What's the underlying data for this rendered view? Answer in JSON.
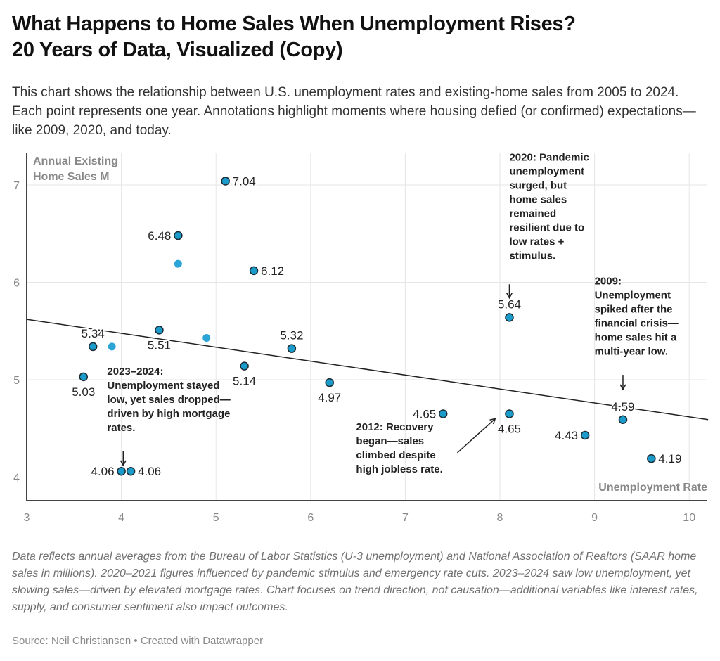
{
  "header": {
    "title_line1": "What Happens to Home Sales When Unemployment Rises?",
    "title_line2": "20 Years of Data, Visualized (Copy)",
    "subtitle": "This chart shows the relationship between U.S. unemployment rates and existing-home sales from 2005 to 2024. Each point represents one year. Annotations highlight moments where housing defied (or confirmed) expectations—like 2009, 2020, and today."
  },
  "colors": {
    "point_fill": "#1a9bc9",
    "point_stroke": "#1b2a33",
    "point_unlabeled": "#2aa5d6",
    "trend_line": "#222222",
    "gridline": "#e6e6e6",
    "axis_line": "#444444"
  },
  "chart_data": {
    "type": "scatter",
    "title": "What Happens to Home Sales When Unemployment Rises? 20 Years of Data, Visualized (Copy)",
    "xlabel": "Unemployment Rate",
    "ylabel_lines": [
      "Annual Existing",
      "Home Sales M"
    ],
    "xlim": [
      3,
      10.2
    ],
    "ylim": [
      3.75,
      7.2
    ],
    "xticks": [
      3,
      4,
      5,
      6,
      7,
      8,
      9,
      10
    ],
    "yticks": [
      4,
      5,
      6,
      7
    ],
    "grid": true,
    "points": [
      {
        "x": 5.1,
        "y": 7.04,
        "label": "7.04",
        "labeled": true,
        "pos": "right"
      },
      {
        "x": 4.6,
        "y": 6.48,
        "label": "6.48",
        "labeled": true,
        "pos": "left"
      },
      {
        "x": 4.6,
        "y": 6.19,
        "label": "",
        "labeled": false
      },
      {
        "x": 5.4,
        "y": 6.12,
        "label": "6.12",
        "labeled": true,
        "pos": "right"
      },
      {
        "x": 8.1,
        "y": 5.64,
        "label": "5.64",
        "labeled": true,
        "pos": "top"
      },
      {
        "x": 4.4,
        "y": 5.51,
        "label": "5.51",
        "labeled": true,
        "pos": "bottom"
      },
      {
        "x": 4.9,
        "y": 5.43,
        "label": "",
        "labeled": false
      },
      {
        "x": 3.7,
        "y": 5.34,
        "label": "5.34",
        "labeled": true,
        "pos": "top"
      },
      {
        "x": 3.9,
        "y": 5.34,
        "label": "",
        "labeled": false
      },
      {
        "x": 5.8,
        "y": 5.32,
        "label": "5.32",
        "labeled": true,
        "pos": "top"
      },
      {
        "x": 5.3,
        "y": 5.14,
        "label": "5.14",
        "labeled": true,
        "pos": "bottom"
      },
      {
        "x": 3.6,
        "y": 5.03,
        "label": "5.03",
        "labeled": true,
        "pos": "bottom"
      },
      {
        "x": 6.2,
        "y": 4.97,
        "label": "4.97",
        "labeled": true,
        "pos": "bottom"
      },
      {
        "x": 7.4,
        "y": 4.65,
        "label": "4.65",
        "labeled": true,
        "pos": "left"
      },
      {
        "x": 8.1,
        "y": 4.65,
        "label": "4.65",
        "labeled": true,
        "pos": "bottom"
      },
      {
        "x": 9.3,
        "y": 4.59,
        "label": "4.59",
        "labeled": true,
        "pos": "top"
      },
      {
        "x": 8.9,
        "y": 4.43,
        "label": "4.43",
        "labeled": true,
        "pos": "left"
      },
      {
        "x": 9.6,
        "y": 4.19,
        "label": "4.19",
        "labeled": true,
        "pos": "right"
      },
      {
        "x": 4.0,
        "y": 4.06,
        "label": "4.06",
        "labeled": true,
        "pos": "left"
      },
      {
        "x": 4.1,
        "y": 4.06,
        "label": "4.06",
        "labeled": true,
        "pos": "right"
      }
    ],
    "trend_line": {
      "x": [
        3,
        10.2
      ],
      "y": [
        5.62,
        4.59
      ]
    },
    "annotations": [
      {
        "id": "2020",
        "lines": [
          "2020: Pandemic",
          "unemployment",
          "surged, but",
          "home sales",
          "remained",
          "resilient due to",
          "low rates +",
          "stimulus."
        ],
        "anchor_x": 8.1,
        "anchor_y": 7.25,
        "arrow": "down",
        "arrow_x": 8.1,
        "arrow_y1": 5.98,
        "arrow_y2": 5.84
      },
      {
        "id": "2009",
        "lines": [
          "2009:",
          "Unemployment",
          "spiked after the",
          "financial crisis—",
          "home sales hit a",
          "multi-year low."
        ],
        "anchor_x": 9.0,
        "anchor_y": 5.98,
        "arrow": "down",
        "arrow_x": 9.3,
        "arrow_y1": 5.05,
        "arrow_y2": 4.9
      },
      {
        "id": "2023",
        "lines": [
          "2023–2024:",
          "Unemployment stayed",
          "low, yet sales dropped—",
          "driven by high mortgage",
          "rates."
        ],
        "anchor_x": 3.85,
        "anchor_y": 5.05,
        "arrow": "down",
        "arrow_x": 4.02,
        "arrow_y1": 4.27,
        "arrow_y2": 4.12
      },
      {
        "id": "2012",
        "lines": [
          "2012: Recovery",
          "began—sales",
          "climbed despite",
          "high jobless rate."
        ],
        "anchor_x": 6.48,
        "anchor_y": 4.48,
        "arrow": "diag",
        "arrow_from": [
          7.55,
          4.25
        ],
        "arrow_to": [
          7.95,
          4.6
        ]
      }
    ]
  },
  "notes": "Data reflects annual averages from the Bureau of Labor Statistics (U-3 unemployment) and National Association of Realtors (SAAR home sales in millions). 2020–2021 figures influenced by pandemic stimulus and emergency rate cuts. 2023–2024 saw low unemployment, yet slowing sales—driven by elevated mortgage rates. Chart focuses on trend direction, not causation—additional variables like interest rates, supply, and consumer sentiment also impact outcomes.",
  "source": "Source: Neil Christiansen  • Created with Datawrapper"
}
